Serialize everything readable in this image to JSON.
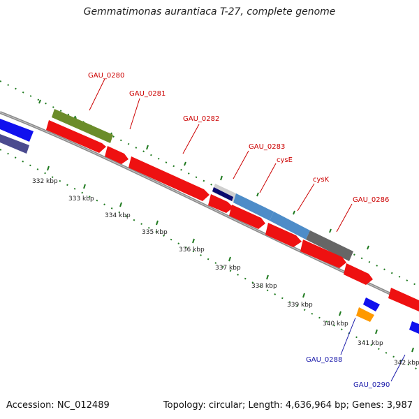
{
  "title": "Gemmatimonas aurantiaca T-27, complete genome",
  "footer": {
    "accession": "Accession: NC_012489",
    "info": "Topology: circular; Length: 4,636,964 bp; Genes: 3,987"
  },
  "tick_labels": [
    "332 kbp",
    "333 kbp",
    "334 kbp",
    "335 kbp",
    "336 kbp",
    "337 kbp",
    "338 kbp",
    "339 kbp",
    "340 kbp",
    "341 kbp",
    "342 kbp"
  ],
  "gene_labels_red": [
    "GAU_0280",
    "GAU_0281",
    "GAU_0282",
    "GAU_0283",
    "cysE",
    "cysK",
    "GAU_0286"
  ],
  "gene_labels_blue": [
    "GAU_0288",
    "GAU_0290"
  ],
  "colors": {
    "cds": "#ee1111",
    "label_red": "#cc0000",
    "label_blue": "#1a1aaa",
    "backbone": "#8a8a8a",
    "tick": "#1f7a1f",
    "olive": "#6b8c2a",
    "steelblue": "#4d8cc8",
    "gray_feature": "#666666",
    "blue_feature": "#1010ee",
    "purple_feature": "#4b4b8f",
    "orange_feature": "#ff9900"
  }
}
